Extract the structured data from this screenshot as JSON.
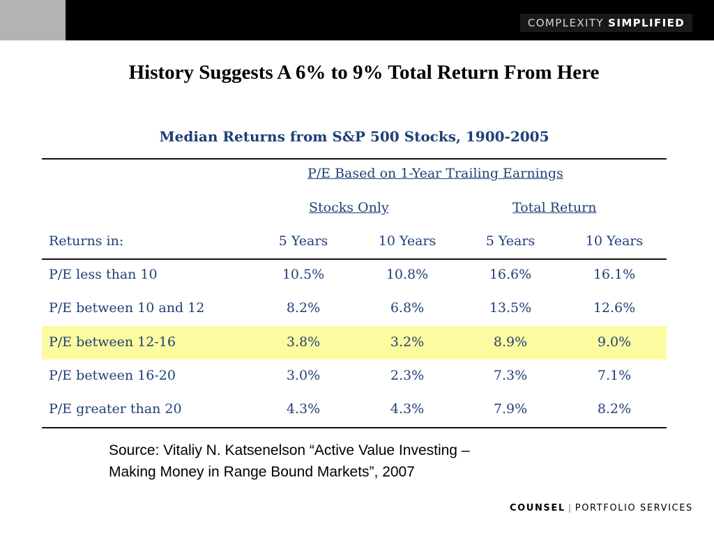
{
  "header": {
    "brand_light": "COMPLEXITY",
    "brand_bold": "SIMPLIFIED"
  },
  "title": "History Suggests A 6% to 9% Total Return From Here",
  "subtitle": "Median Returns from S&P 500 Stocks, 1900-2005",
  "table": {
    "super_header": "P/E Based on 1-Year Trailing Earnings",
    "group_headers": [
      "Stocks Only",
      "Total Return"
    ],
    "row_header_label": "Returns in:",
    "column_headers": [
      "5 Years",
      "10 Years",
      "5 Years",
      "10 Years"
    ],
    "rows": [
      {
        "label": "P/E less than 10",
        "values": [
          "10.5%",
          "10.8%",
          "16.6%",
          "16.1%"
        ]
      },
      {
        "label": "P/E between 10 and 12",
        "values": [
          "8.2%",
          "6.8%",
          "13.5%",
          "12.6%"
        ]
      },
      {
        "label": "P/E between 12-16",
        "values": [
          "3.8%",
          "3.2%",
          "8.9%",
          "9.0%"
        ]
      },
      {
        "label": "P/E between 16-20",
        "values": [
          "3.0%",
          "2.3%",
          "7.3%",
          "7.1%"
        ]
      },
      {
        "label": "P/E greater than 20",
        "values": [
          "4.3%",
          "4.3%",
          "7.9%",
          "8.2%"
        ]
      }
    ],
    "highlight_color": "#fdfba0",
    "text_color": "#1f3f77"
  },
  "source": {
    "line1": "Source: Vitaliy N. Katsenelson “Active Value Investing –",
    "line2": "Making Money in Range Bound Markets”,  2007"
  },
  "footer": {
    "logo_bold": "COUNSEL",
    "separator": "|",
    "logo_light": "PORTFOLIO SERVICES"
  }
}
